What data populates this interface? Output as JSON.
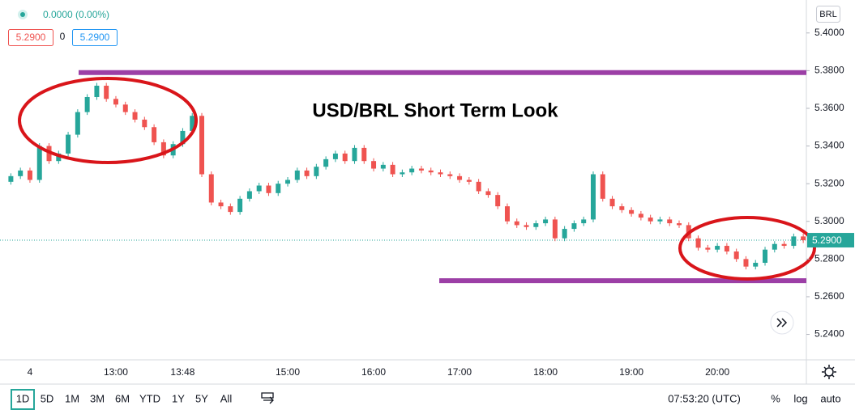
{
  "chart_data": {
    "type": "candlestick",
    "title": "USD/BRL Short Term Look",
    "currency": "BRL",
    "change": "0.0000 (0.00%)",
    "bid": "5.2900",
    "spread": "0",
    "ask": "5.2900",
    "categories": [
      null,
      null,
      "4",
      null,
      null,
      null,
      null,
      null,
      null,
      null,
      null,
      "13:00",
      null,
      null,
      null,
      null,
      null,
      null,
      "13:48",
      null,
      null,
      null,
      null,
      null,
      null,
      null,
      null,
      null,
      null,
      "15:00",
      null,
      null,
      null,
      null,
      null,
      null,
      null,
      null,
      "16:00",
      null,
      null,
      null,
      null,
      null,
      null,
      null,
      null,
      "17:00",
      null,
      null,
      null,
      null,
      null,
      null,
      null,
      null,
      "18:00",
      null,
      null,
      null,
      null,
      null,
      null,
      null,
      null,
      "19:00",
      null,
      null,
      null,
      null,
      null,
      null,
      null,
      null,
      "20:00",
      null,
      null,
      null,
      null,
      null,
      null,
      null,
      null,
      null
    ],
    "open": [
      5.321,
      5.324,
      5.327,
      5.322,
      5.34,
      5.332,
      5.336,
      5.346,
      5.358,
      5.366,
      5.372,
      5.365,
      5.362,
      5.358,
      5.354,
      5.35,
      5.342,
      5.335,
      5.341,
      5.348,
      5.356,
      5.325,
      5.31,
      5.308,
      5.305,
      5.312,
      5.316,
      5.319,
      5.315,
      5.32,
      5.322,
      5.327,
      5.324,
      5.329,
      5.333,
      5.336,
      5.332,
      5.339,
      5.332,
      5.328,
      5.33,
      5.325,
      5.326,
      5.328,
      5.327,
      5.326,
      5.325,
      5.324,
      5.322,
      5.321,
      5.316,
      5.314,
      5.308,
      5.3,
      5.298,
      5.297,
      5.299,
      5.301,
      5.291,
      5.296,
      5.299,
      5.301,
      5.325,
      5.312,
      5.308,
      5.306,
      5.304,
      5.302,
      5.3,
      5.301,
      5.299,
      5.298,
      5.291,
      5.286,
      5.285,
      5.287,
      5.284,
      5.28,
      5.276,
      5.278,
      5.285,
      5.288,
      5.287,
      5.292
    ],
    "high": [
      5.3255,
      5.3285,
      5.3285,
      5.3415,
      5.3415,
      5.3375,
      5.3475,
      5.3595,
      5.3675,
      5.3735,
      5.3735,
      5.3665,
      5.3635,
      5.3595,
      5.3555,
      5.3515,
      5.3435,
      5.3425,
      5.3495,
      5.3575,
      5.3575,
      5.3265,
      5.3115,
      5.3095,
      5.3135,
      5.3175,
      5.3205,
      5.3205,
      5.3215,
      5.3235,
      5.3285,
      5.3285,
      5.3305,
      5.3345,
      5.3375,
      5.3375,
      5.3405,
      5.3405,
      5.3335,
      5.3315,
      5.3315,
      5.3275,
      5.3295,
      5.3295,
      5.3285,
      5.3275,
      5.3265,
      5.3255,
      5.3235,
      5.3225,
      5.3175,
      5.3155,
      5.3095,
      5.3015,
      5.2995,
      5.3005,
      5.3025,
      5.3025,
      5.2975,
      5.3005,
      5.3025,
      5.3265,
      5.3265,
      5.3135,
      5.3095,
      5.3075,
      5.3055,
      5.3035,
      5.3025,
      5.3025,
      5.3005,
      5.2995,
      5.2925,
      5.2875,
      5.2885,
      5.2885,
      5.2855,
      5.2815,
      5.2795,
      5.2865,
      5.2895,
      5.2895,
      5.2935,
      5.2935
    ],
    "low": [
      5.3195,
      5.3225,
      5.3205,
      5.3205,
      5.3305,
      5.3305,
      5.3345,
      5.3445,
      5.3565,
      5.3645,
      5.3635,
      5.3605,
      5.3565,
      5.3525,
      5.3485,
      5.3405,
      5.3335,
      5.3335,
      5.3395,
      5.3465,
      5.3235,
      5.3085,
      5.3065,
      5.3035,
      5.3035,
      5.3105,
      5.3145,
      5.3135,
      5.3135,
      5.3185,
      5.3205,
      5.3225,
      5.3225,
      5.3275,
      5.3315,
      5.3305,
      5.3305,
      5.3305,
      5.3265,
      5.3265,
      5.3235,
      5.3235,
      5.3245,
      5.3255,
      5.3245,
      5.3235,
      5.3225,
      5.3205,
      5.3195,
      5.3145,
      5.3125,
      5.3065,
      5.2985,
      5.2965,
      5.2955,
      5.2955,
      5.2975,
      5.2895,
      5.2895,
      5.2945,
      5.2975,
      5.2995,
      5.3105,
      5.3065,
      5.3045,
      5.3025,
      5.3005,
      5.2985,
      5.2985,
      5.2975,
      5.2965,
      5.2895,
      5.2845,
      5.2835,
      5.2835,
      5.2825,
      5.2785,
      5.2745,
      5.2745,
      5.2765,
      5.2835,
      5.2855,
      5.2855,
      5.2885
    ],
    "close": [
      5.324,
      5.327,
      5.322,
      5.34,
      5.332,
      5.336,
      5.346,
      5.358,
      5.366,
      5.372,
      5.365,
      5.362,
      5.358,
      5.354,
      5.35,
      5.342,
      5.335,
      5.341,
      5.348,
      5.356,
      5.325,
      5.31,
      5.308,
      5.305,
      5.312,
      5.316,
      5.319,
      5.315,
      5.32,
      5.322,
      5.327,
      5.324,
      5.329,
      5.333,
      5.336,
      5.332,
      5.339,
      5.332,
      5.328,
      5.33,
      5.325,
      5.326,
      5.328,
      5.327,
      5.326,
      5.325,
      5.324,
      5.322,
      5.321,
      5.316,
      5.314,
      5.308,
      5.3,
      5.298,
      5.297,
      5.299,
      5.301,
      5.291,
      5.296,
      5.299,
      5.301,
      5.325,
      5.312,
      5.308,
      5.306,
      5.304,
      5.302,
      5.3,
      5.301,
      5.299,
      5.298,
      5.291,
      5.286,
      5.285,
      5.287,
      5.284,
      5.28,
      5.276,
      5.278,
      5.285,
      5.288,
      5.287,
      5.292,
      5.29
    ],
    "up_color": "#26a69a",
    "down_color": "#ef5350",
    "ylim": [
      5.2265,
      5.4175
    ],
    "yticks": [
      {
        "value": 5.24,
        "label": "5.2400"
      },
      {
        "value": 5.26,
        "label": "5.2600"
      },
      {
        "value": 5.28,
        "label": "5.2800"
      },
      {
        "value": 5.3,
        "label": "5.3000"
      },
      {
        "value": 5.32,
        "label": "5.3200"
      },
      {
        "value": 5.34,
        "label": "5.3400"
      },
      {
        "value": 5.36,
        "label": "5.3600"
      },
      {
        "value": 5.38,
        "label": "5.3800"
      },
      {
        "value": 5.4,
        "label": "5.4000"
      }
    ],
    "last_price": {
      "value": 5.29,
      "label": "5.2900"
    },
    "hlines": [
      {
        "value": 5.379,
        "color": "#9c3fa6"
      },
      {
        "value": 5.2685,
        "color": "#9c3fa6"
      }
    ]
  },
  "toolbar": {
    "ranges": [
      "1D",
      "5D",
      "1M",
      "3M",
      "6M",
      "YTD",
      "1Y",
      "5Y",
      "All"
    ],
    "clock": "07:53:20 (UTC)",
    "options": [
      "%",
      "log",
      "auto"
    ]
  }
}
